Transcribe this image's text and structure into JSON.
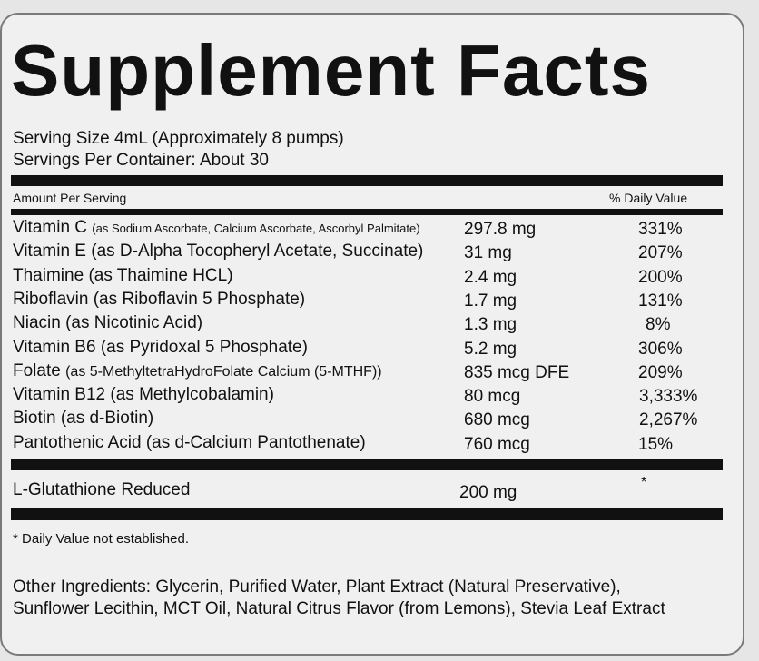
{
  "title": "Supplement Facts",
  "serving_size": "Serving Size 4mL (Approximately 8 pumps)",
  "servings_per_container": "Servings Per Container: About 30",
  "header": {
    "amount_per_serving": "Amount Per Serving",
    "daily_value": "% Daily Value"
  },
  "nutrients": [
    {
      "name": "Vitamin C",
      "detail": "(as Sodium Ascorbate, Calcium Ascorbate, Ascorbyl Palmitate)",
      "detail_small": true,
      "amount": "297.8 mg",
      "dv": "331%"
    },
    {
      "name": "Vitamin E",
      "detail": "(as D-Alpha Tocopheryl Acetate, Succinate)",
      "detail_small": false,
      "amount": "31 mg",
      "dv": "207%"
    },
    {
      "name": "Thaimine",
      "detail": "(as Thaimine HCL)",
      "detail_small": false,
      "amount": "2.4 mg",
      "dv": "200%"
    },
    {
      "name": "Riboflavin",
      "detail": "(as Riboflavin 5 Phosphate)",
      "detail_small": false,
      "amount": "1.7 mg",
      "dv": "131%"
    },
    {
      "name": "Niacin",
      "detail": "(as Nicotinic Acid)",
      "detail_small": false,
      "amount": "1.3 mg",
      "dv": "8%"
    },
    {
      "name": "Vitamin B6",
      "detail": "(as Pyridoxal 5 Phosphate)",
      "detail_small": false,
      "amount": "5.2 mg",
      "dv": "306%"
    },
    {
      "name": "Folate",
      "detail": "(as 5-MethyltetraHydroFolate Calcium (5-MTHF))",
      "detail_small": "medium",
      "amount": "835 mcg DFE",
      "dv": "209%"
    },
    {
      "name": "Vitamin B12",
      "detail": "(as Methylcobalamin)",
      "detail_small": false,
      "amount": "80 mcg",
      "dv": "3,333%"
    },
    {
      "name": "Biotin",
      "detail": " (as d-Biotin)",
      "detail_small": false,
      "amount": "680 mcg",
      "dv": "2,267%"
    },
    {
      "name": "Pantothenic Acid",
      "detail": "(as d-Calcium Pantothenate)",
      "detail_small": false,
      "amount": "760 mcg",
      "dv": "15%"
    }
  ],
  "glutathione": {
    "name": "L-Glutathione Reduced",
    "amount": "200 mg",
    "dv": "*"
  },
  "footnote": "* Daily Value not established.",
  "other_ingredients": {
    "line1": "Other Ingredients: Glycerin, Purified Water, Plant Extract (Natural Preservative),",
    "line2": "Sunflower Lecithin, MCT Oil, Natural Citrus Flavor (from Lemons), Stevia Leaf Extract"
  }
}
